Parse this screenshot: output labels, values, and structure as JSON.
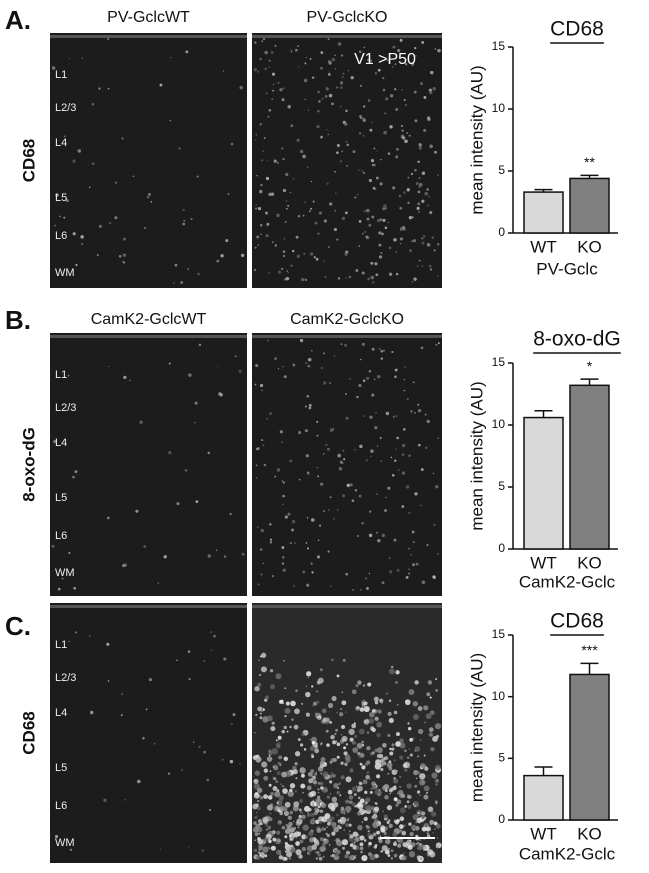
{
  "panels": [
    {
      "letter": "A.",
      "row_label": "CD68",
      "image_labels": [
        "PV-GclcWT",
        "PV-GclcKO"
      ],
      "image_annotation": "V1 >P50",
      "layers": [
        "L1",
        "L2/3",
        "L4",
        "L5",
        "L6",
        "WM"
      ]
    },
    {
      "letter": "B.",
      "row_label": "8-oxo-dG",
      "image_labels": [
        "CamK2-GclcWT",
        "CamK2-GclcKO"
      ],
      "layers": [
        "L1",
        "L2/3",
        "L4",
        "L5",
        "L6",
        "WM"
      ]
    },
    {
      "letter": "C.",
      "row_label": "CD68",
      "layers": [
        "L1",
        "L2/3",
        "L4",
        "L5",
        "L6",
        "WM"
      ]
    }
  ],
  "chart_data": [
    {
      "type": "bar",
      "title": "CD68",
      "y_label": "mean intensity (AU)",
      "x_label": "PV-Gclc",
      "categories": [
        "WT",
        "KO"
      ],
      "values": [
        3.3,
        4.4
      ],
      "errors": [
        0.2,
        0.25
      ],
      "colors": [
        "#d9d9d9",
        "#808080"
      ],
      "ylim": [
        0,
        15
      ],
      "yticks": [
        0,
        5,
        10,
        15
      ],
      "annotations": [
        {
          "text": "**",
          "x": "KO"
        }
      ]
    },
    {
      "type": "bar",
      "title": "8-oxo-dG",
      "y_label": "mean intensity (AU)",
      "x_label": "CamK2-Gclc",
      "categories": [
        "WT",
        "KO"
      ],
      "values": [
        10.6,
        13.2
      ],
      "errors": [
        0.55,
        0.5
      ],
      "colors": [
        "#d9d9d9",
        "#808080"
      ],
      "ylim": [
        0,
        15
      ],
      "yticks": [
        0,
        5,
        10,
        15
      ],
      "annotations": [
        {
          "text": "*",
          "x": "KO"
        }
      ]
    },
    {
      "type": "bar",
      "title": "CD68",
      "y_label": "mean intensity (AU)",
      "x_label": "CamK2-Gclc",
      "categories": [
        "WT",
        "KO"
      ],
      "values": [
        3.6,
        11.8
      ],
      "errors": [
        0.7,
        0.9
      ],
      "colors": [
        "#d9d9d9",
        "#808080"
      ],
      "ylim": [
        0,
        15
      ],
      "yticks": [
        0,
        5,
        10,
        15
      ],
      "annotations": [
        {
          "text": "***",
          "x": "KO"
        }
      ]
    }
  ]
}
